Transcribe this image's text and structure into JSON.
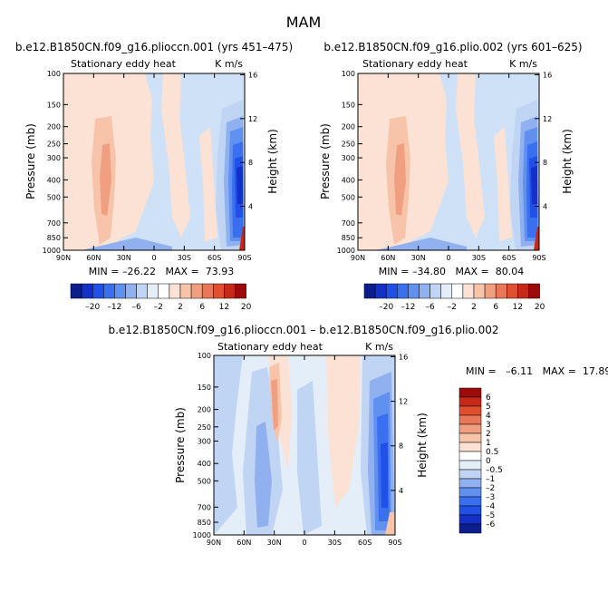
{
  "page_title": "MAM",
  "colors": {
    "blue_ramp": [
      "#0b1e8c",
      "#1530c8",
      "#2050e8",
      "#3a70f0",
      "#6090f0",
      "#90b0f0",
      "#c0d4f4"
    ],
    "red_ramp": [
      "#fbe2d5",
      "#f7c4aa",
      "#f0a080",
      "#e87858",
      "#e05030",
      "#c82818",
      "#9c0a0a"
    ],
    "neutral": [
      "#e4eef8",
      "#ffffff"
    ],
    "background_field": "#cfe1f6"
  },
  "chart_data": [
    {
      "type": "heatmap",
      "title": "b.e12.B1850CN.f09_g16.plioccn.001 (yrs 451–475)",
      "left_label": "Stationary eddy heat",
      "right_label": "K m/s",
      "ylabel": "Pressure (mb)",
      "y2label": "Height (km)",
      "x_ticks": [
        "90N",
        "60N",
        "30N",
        "0",
        "30S",
        "60S",
        "90S"
      ],
      "y_ticks": [
        "100",
        "150",
        "200",
        "250",
        "300",
        "400",
        "500",
        "700",
        "850",
        "1000"
      ],
      "y2_ticks": [
        "16",
        "12",
        "8",
        "4"
      ],
      "stats": "MIN = –26.22   MAX =  73.93",
      "lat_range": [
        90,
        -90
      ],
      "pressure_range_mb": [
        100,
        1000
      ],
      "features": [
        {
          "kind": "positive_band",
          "lat": [
            44,
            36
          ],
          "pressure_mb": [
            200,
            700
          ],
          "value": 6
        },
        {
          "kind": "negative_core",
          "lat": [
            -70,
            -84
          ],
          "pressure_mb": [
            150,
            1000
          ],
          "value": -20
        },
        {
          "kind": "positive_surface",
          "lat": [
            -84,
            -90
          ],
          "pressure_mb": [
            700,
            1000
          ],
          "value": 20
        }
      ]
    },
    {
      "type": "heatmap",
      "title": "b.e12.B1850CN.f09_g16.plio.002 (yrs 601–625)",
      "left_label": "Stationary eddy heat",
      "right_label": "K m/s",
      "ylabel": "Pressure (mb)",
      "y2label": "Height (km)",
      "x_ticks": [
        "90N",
        "60N",
        "30N",
        "0",
        "30S",
        "60S",
        "90S"
      ],
      "y_ticks": [
        "100",
        "150",
        "200",
        "250",
        "300",
        "400",
        "500",
        "700",
        "850",
        "1000"
      ],
      "y2_ticks": [
        "16",
        "12",
        "8",
        "4"
      ],
      "stats": "MIN = –34.80   MAX =  80.04",
      "lat_range": [
        90,
        -90
      ],
      "pressure_range_mb": [
        100,
        1000
      ],
      "features": [
        {
          "kind": "positive_band",
          "lat": [
            44,
            36
          ],
          "pressure_mb": [
            200,
            700
          ],
          "value": 6
        },
        {
          "kind": "negative_core",
          "lat": [
            -70,
            -84
          ],
          "pressure_mb": [
            150,
            1000
          ],
          "value": -20
        },
        {
          "kind": "positive_surface",
          "lat": [
            -84,
            -90
          ],
          "pressure_mb": [
            700,
            1000
          ],
          "value": 20
        }
      ]
    },
    {
      "type": "heatmap",
      "title": "b.e12.B1850CN.f09_g16.plioccn.001 – b.e12.B1850CN.f09_g16.plio.002",
      "left_label": "Stationary eddy heat",
      "right_label": "K m/s",
      "ylabel": "Pressure (mb)",
      "y2label": "Height (km)",
      "x_ticks": [
        "90N",
        "60N",
        "30N",
        "0",
        "30S",
        "60S",
        "90S"
      ],
      "y_ticks": [
        "100",
        "150",
        "200",
        "250",
        "300",
        "400",
        "500",
        "700",
        "850",
        "1000"
      ],
      "y2_ticks": [
        "16",
        "12",
        "8",
        "4"
      ],
      "stats": "MIN =   –6.11   MAX =  17.89",
      "lat_range": [
        90,
        -90
      ],
      "pressure_range_mb": [
        100,
        1000
      ],
      "features": [
        {
          "kind": "positive_band",
          "lat": [
            36,
            26
          ],
          "pressure_mb": [
            150,
            500
          ],
          "value": 1.5
        },
        {
          "kind": "negative_core",
          "lat": [
            -68,
            -82
          ],
          "pressure_mb": [
            200,
            1000
          ],
          "value": -3
        },
        {
          "kind": "negative_band",
          "lat": [
            12,
            2
          ],
          "pressure_mb": [
            400,
            1000
          ],
          "value": -1
        }
      ]
    }
  ],
  "colorbar_top": {
    "labels": [
      "–20",
      "–12",
      "–6",
      "–2",
      "2",
      "6",
      "12",
      "20"
    ]
  },
  "colorbar_diff": {
    "labels": [
      "6",
      "5",
      "4",
      "3",
      "2",
      "1",
      "0.5",
      "0",
      "–0.5",
      "–1",
      "–2",
      "–3",
      "–4",
      "–5",
      "–6"
    ]
  }
}
